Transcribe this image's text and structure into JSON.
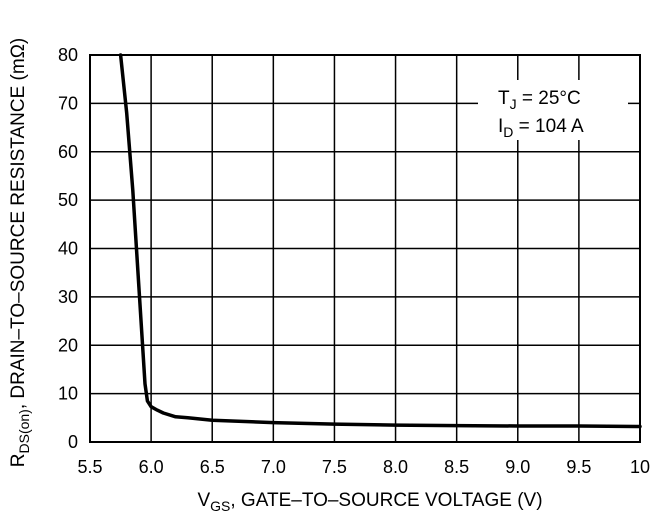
{
  "chart_data": {
    "type": "line",
    "title": "",
    "xlabel": {
      "main": "V",
      "sub": "GS",
      "rest": ", GATE–TO–SOURCE VOLTAGE (V)"
    },
    "ylabel": {
      "main": "R",
      "sub": "DS(on)",
      "rest": ", DRAIN–TO–SOURCE RESISTANCE (mΩ)"
    },
    "xlim": [
      5.5,
      10
    ],
    "ylim": [
      0,
      80
    ],
    "x_ticks": [
      "5.5",
      "6.0",
      "6.5",
      "7.0",
      "7.5",
      "8.0",
      "8.5",
      "9.0",
      "9.5",
      "10"
    ],
    "x_tick_values": [
      5.5,
      6.0,
      6.5,
      7.0,
      7.5,
      8.0,
      8.5,
      9.0,
      9.5,
      10
    ],
    "y_ticks": [
      "0",
      "10",
      "20",
      "30",
      "40",
      "50",
      "60",
      "70",
      "80"
    ],
    "y_tick_values": [
      0,
      10,
      20,
      30,
      40,
      50,
      60,
      70,
      80
    ],
    "grid": true,
    "annotations": [
      {
        "main": "T",
        "sub": "J",
        "rest": " = 25°C"
      },
      {
        "main": "I",
        "sub": "D",
        "rest": " = 104 A"
      }
    ],
    "series": [
      {
        "x": [
          5.75,
          5.8,
          5.85,
          5.9,
          5.95,
          5.97,
          6.0,
          6.05,
          6.1,
          6.2,
          6.3,
          6.5,
          7.0,
          7.5,
          8.0,
          8.5,
          9.0,
          9.5,
          10.0
        ],
        "y": [
          80,
          68,
          52,
          32,
          12,
          8.5,
          7.3,
          6.6,
          6.0,
          5.2,
          5.0,
          4.5,
          4.0,
          3.7,
          3.5,
          3.4,
          3.3,
          3.3,
          3.2
        ]
      }
    ]
  }
}
